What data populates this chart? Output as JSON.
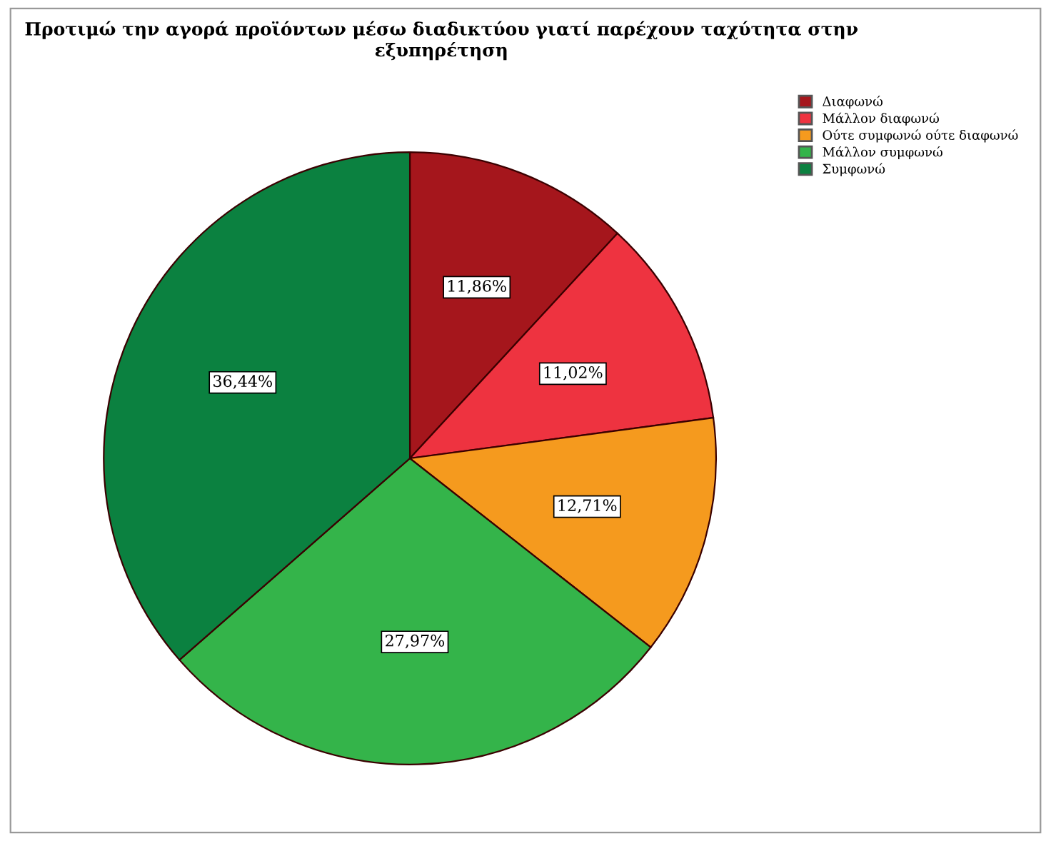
{
  "chart_data": {
    "type": "pie",
    "title": "Προτιμώ την αγορά προϊόντων μέσω διαδικτύου γιατί παρέχουν ταχύτητα στην εξυπηρέτηση",
    "categories": [
      "Διαφωνώ",
      "Μάλλον διαφωνώ",
      "Ούτε συμφωνώ ούτε διαφωνώ",
      "Μάλλον συμφωνώ",
      "Συμφωνώ"
    ],
    "values": [
      11.86,
      11.02,
      12.71,
      27.97,
      36.44
    ],
    "value_labels": [
      "11,86%",
      "11,02%",
      "12,71%",
      "27,97%",
      "36,44%"
    ],
    "colors": [
      "#a5161c",
      "#ee3340",
      "#f59a1e",
      "#34b44a",
      "#0b8140"
    ],
    "legend": "top right"
  }
}
